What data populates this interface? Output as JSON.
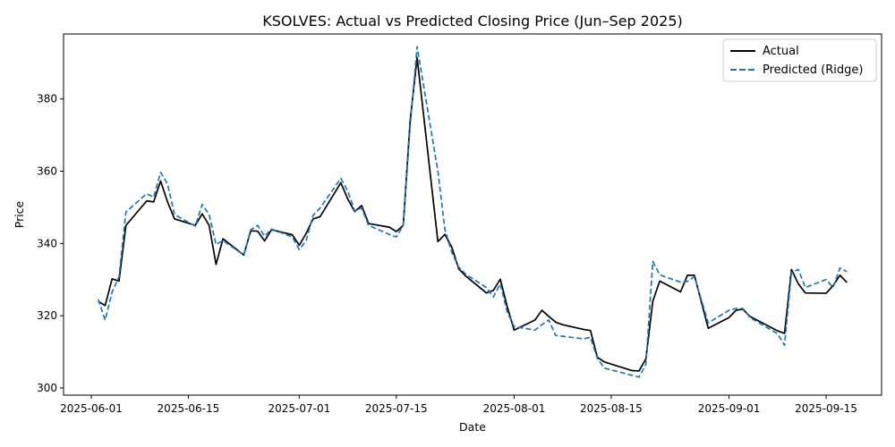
{
  "chart_data": {
    "type": "line",
    "title": "KSOLVES: Actual vs Predicted Closing Price (Jun–Sep 2025)",
    "xlabel": "Date",
    "ylabel": "Price",
    "xlim": [
      "2025-05-28",
      "2025-09-23"
    ],
    "ylim": [
      298,
      398
    ],
    "x_ticks": [
      "2025-06-01",
      "2025-06-15",
      "2025-07-01",
      "2025-07-15",
      "2025-08-01",
      "2025-08-15",
      "2025-09-01",
      "2025-09-15"
    ],
    "y_ticks": [
      300,
      320,
      340,
      360,
      380
    ],
    "grid": false,
    "legend_position": "top-right",
    "series": [
      {
        "name": "Actual",
        "color": "#000000",
        "style": "solid",
        "points": [
          [
            "2025-06-02",
            324.0
          ],
          [
            "2025-06-03",
            322.8
          ],
          [
            "2025-06-04",
            330.2
          ],
          [
            "2025-06-05",
            329.6
          ],
          [
            "2025-06-06",
            345.0
          ],
          [
            "2025-06-09",
            351.8
          ],
          [
            "2025-06-10",
            351.5
          ],
          [
            "2025-06-11",
            357.3
          ],
          [
            "2025-06-12",
            351.5
          ],
          [
            "2025-06-13",
            346.8
          ],
          [
            "2025-06-16",
            345.0
          ],
          [
            "2025-06-17",
            348.2
          ],
          [
            "2025-06-18",
            345.0
          ],
          [
            "2025-06-19",
            334.2
          ],
          [
            "2025-06-20",
            341.3
          ],
          [
            "2025-06-23",
            336.8
          ],
          [
            "2025-06-24",
            343.5
          ],
          [
            "2025-06-25",
            343.4
          ],
          [
            "2025-06-26",
            340.7
          ],
          [
            "2025-06-27",
            343.8
          ],
          [
            "2025-06-30",
            342.4
          ],
          [
            "2025-07-01",
            339.5
          ],
          [
            "2025-07-02",
            342.8
          ],
          [
            "2025-07-03",
            346.8
          ],
          [
            "2025-07-04",
            347.4
          ],
          [
            "2025-07-07",
            356.8
          ],
          [
            "2025-07-08",
            352.3
          ],
          [
            "2025-07-09",
            348.8
          ],
          [
            "2025-07-10",
            350.5
          ],
          [
            "2025-07-11",
            345.5
          ],
          [
            "2025-07-14",
            344.5
          ],
          [
            "2025-07-15",
            343.3
          ],
          [
            "2025-07-16",
            345.0
          ],
          [
            "2025-07-17",
            374.0
          ],
          [
            "2025-07-18",
            391.5
          ],
          [
            "2025-07-21",
            340.5
          ],
          [
            "2025-07-22",
            342.5
          ],
          [
            "2025-07-23",
            339.0
          ],
          [
            "2025-07-24",
            333.0
          ],
          [
            "2025-07-25",
            331.0
          ],
          [
            "2025-07-28",
            326.3
          ],
          [
            "2025-07-29",
            327.0
          ],
          [
            "2025-07-30",
            330.1
          ],
          [
            "2025-07-31",
            322.5
          ],
          [
            "2025-08-01",
            316.0
          ],
          [
            "2025-08-04",
            318.8
          ],
          [
            "2025-08-05",
            321.5
          ],
          [
            "2025-08-06",
            319.8
          ],
          [
            "2025-08-07",
            318.2
          ],
          [
            "2025-08-08",
            317.5
          ],
          [
            "2025-08-11",
            316.2
          ],
          [
            "2025-08-12",
            315.9
          ],
          [
            "2025-08-13",
            308.5
          ],
          [
            "2025-08-14",
            307.2
          ],
          [
            "2025-08-18",
            304.8
          ],
          [
            "2025-08-19",
            304.7
          ],
          [
            "2025-08-20",
            308.0
          ],
          [
            "2025-08-21",
            324.0
          ],
          [
            "2025-08-22",
            329.6
          ],
          [
            "2025-08-25",
            326.6
          ],
          [
            "2025-08-26",
            331.2
          ],
          [
            "2025-08-27",
            331.2
          ],
          [
            "2025-08-29",
            316.5
          ],
          [
            "2025-09-01",
            319.5
          ],
          [
            "2025-09-02",
            321.5
          ],
          [
            "2025-09-03",
            321.8
          ],
          [
            "2025-09-04",
            319.8
          ],
          [
            "2025-09-08",
            315.8
          ],
          [
            "2025-09-09",
            315.1
          ],
          [
            "2025-09-10",
            332.8
          ],
          [
            "2025-09-11",
            328.8
          ],
          [
            "2025-09-12",
            326.3
          ],
          [
            "2025-09-15",
            326.2
          ],
          [
            "2025-09-16",
            328.3
          ],
          [
            "2025-09-17",
            331.2
          ],
          [
            "2025-09-18",
            329.2
          ]
        ]
      },
      {
        "name": "Predicted (Ridge)",
        "color": "#1f77b4",
        "style": "dashed",
        "points": [
          [
            "2025-06-02",
            324.5
          ],
          [
            "2025-06-03",
            318.8
          ],
          [
            "2025-06-04",
            326.5
          ],
          [
            "2025-06-05",
            330.8
          ],
          [
            "2025-06-06",
            348.7
          ],
          [
            "2025-06-09",
            353.8
          ],
          [
            "2025-06-10",
            352.8
          ],
          [
            "2025-06-11",
            359.7
          ],
          [
            "2025-06-12",
            356.5
          ],
          [
            "2025-06-13",
            348.0
          ],
          [
            "2025-06-16",
            344.8
          ],
          [
            "2025-06-17",
            350.8
          ],
          [
            "2025-06-18",
            348.0
          ],
          [
            "2025-06-19",
            339.7
          ],
          [
            "2025-06-20",
            340.8
          ],
          [
            "2025-06-23",
            336.8
          ],
          [
            "2025-06-24",
            343.8
          ],
          [
            "2025-06-25",
            345.0
          ],
          [
            "2025-06-26",
            342.0
          ],
          [
            "2025-06-27",
            344.0
          ],
          [
            "2025-06-30",
            341.8
          ],
          [
            "2025-07-01",
            338.3
          ],
          [
            "2025-07-02",
            340.8
          ],
          [
            "2025-07-03",
            347.8
          ],
          [
            "2025-07-04",
            349.8
          ],
          [
            "2025-07-07",
            358.0
          ],
          [
            "2025-07-08",
            354.5
          ],
          [
            "2025-07-09",
            349.0
          ],
          [
            "2025-07-10",
            349.8
          ],
          [
            "2025-07-11",
            345.0
          ],
          [
            "2025-07-14",
            342.5
          ],
          [
            "2025-07-15",
            341.8
          ],
          [
            "2025-07-16",
            345.0
          ],
          [
            "2025-07-17",
            372.5
          ],
          [
            "2025-07-18",
            394.5
          ],
          [
            "2025-07-21",
            360.0
          ],
          [
            "2025-07-22",
            344.0
          ],
          [
            "2025-07-23",
            337.5
          ],
          [
            "2025-07-24",
            333.5
          ],
          [
            "2025-07-25",
            331.5
          ],
          [
            "2025-07-28",
            327.8
          ],
          [
            "2025-07-29",
            325.2
          ],
          [
            "2025-07-30",
            328.8
          ],
          [
            "2025-07-31",
            321.0
          ],
          [
            "2025-08-01",
            317.0
          ],
          [
            "2025-08-04",
            316.0
          ],
          [
            "2025-08-05",
            317.5
          ],
          [
            "2025-08-06",
            318.8
          ],
          [
            "2025-08-07",
            314.5
          ],
          [
            "2025-08-08",
            314.3
          ],
          [
            "2025-08-11",
            313.6
          ],
          [
            "2025-08-12",
            314.0
          ],
          [
            "2025-08-13",
            308.2
          ],
          [
            "2025-08-14",
            305.5
          ],
          [
            "2025-08-18",
            303.5
          ],
          [
            "2025-08-19",
            303.0
          ],
          [
            "2025-08-20",
            306.5
          ],
          [
            "2025-08-21",
            335.0
          ],
          [
            "2025-08-22",
            331.3
          ],
          [
            "2025-08-25",
            329.3
          ],
          [
            "2025-08-26",
            329.5
          ],
          [
            "2025-08-27",
            330.8
          ],
          [
            "2025-08-29",
            318.0
          ],
          [
            "2025-09-01",
            321.5
          ],
          [
            "2025-09-02",
            322.0
          ],
          [
            "2025-09-03",
            322.0
          ],
          [
            "2025-09-04",
            319.5
          ],
          [
            "2025-09-08",
            315.0
          ],
          [
            "2025-09-09",
            311.8
          ],
          [
            "2025-09-10",
            332.0
          ],
          [
            "2025-09-11",
            332.8
          ],
          [
            "2025-09-12",
            327.8
          ],
          [
            "2025-09-15",
            330.0
          ],
          [
            "2025-09-16",
            327.8
          ],
          [
            "2025-09-17",
            333.2
          ],
          [
            "2025-09-18",
            332.2
          ]
        ]
      }
    ]
  }
}
